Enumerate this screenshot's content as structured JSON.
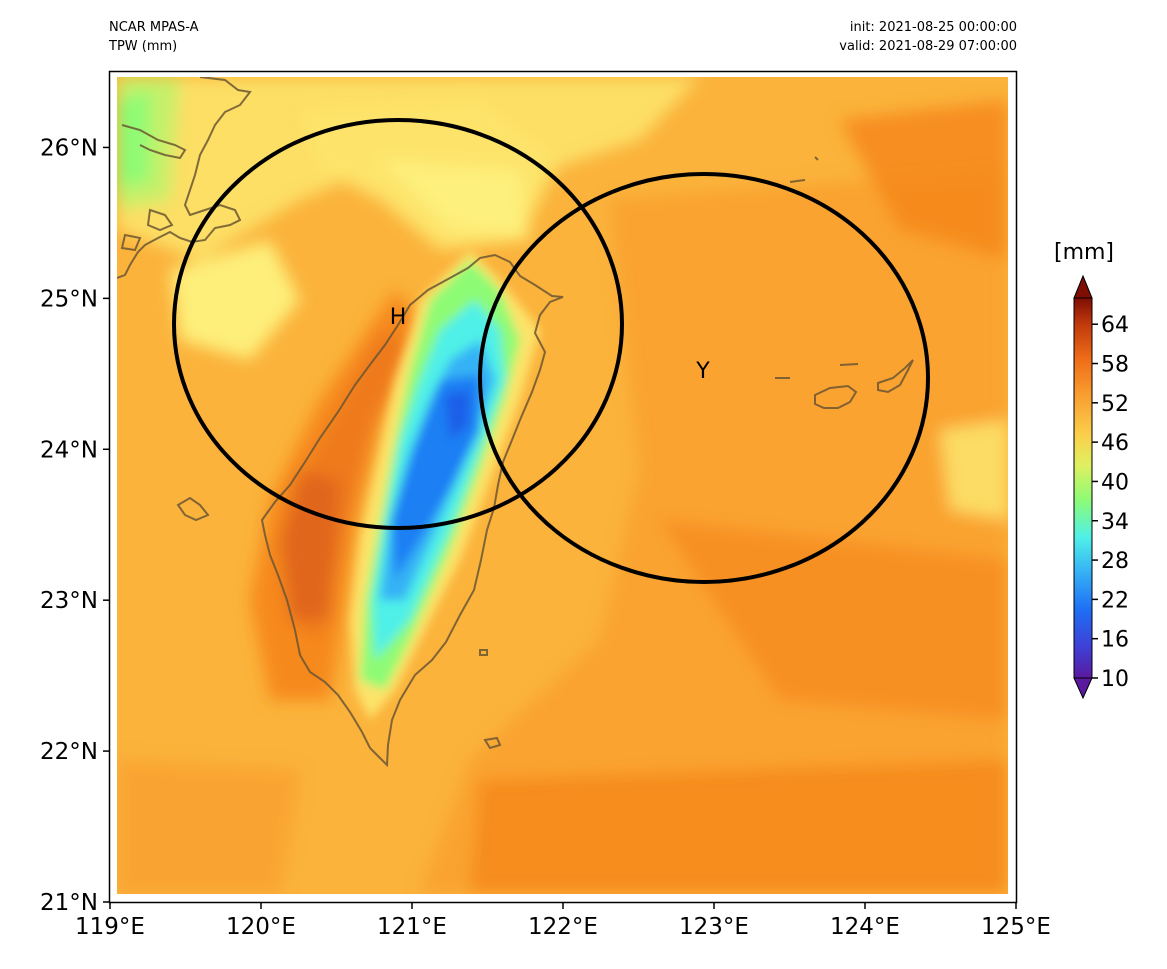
{
  "header": {
    "model": "NCAR MPAS-A",
    "variable": "TPW (mm)",
    "init": "init: 2021-08-25 00:00:00",
    "valid": "valid: 2021-08-29 07:00:00"
  },
  "axes": {
    "lon_ticks": [
      "119°E",
      "120°E",
      "121°E",
      "122°E",
      "123°E",
      "124°E",
      "125°E"
    ],
    "lat_ticks": [
      "21°N",
      "22°N",
      "23°N",
      "24°N",
      "25°N",
      "26°N"
    ],
    "lon_range": [
      119,
      125
    ],
    "lat_range": [
      21,
      26.5
    ]
  },
  "colorbar": {
    "title": "[mm]",
    "tick_labels": [
      "10",
      "16",
      "22",
      "28",
      "34",
      "40",
      "46",
      "52",
      "58",
      "64"
    ],
    "range": [
      10,
      68
    ]
  },
  "markers": [
    {
      "label": "H",
      "lon": 120.95,
      "lat": 24.82
    },
    {
      "label": "Y",
      "lon": 122.98,
      "lat": 24.48
    }
  ],
  "colors": {
    "background_field": "#fbb33c",
    "warm_band": "#f6891c",
    "moist_core": "#e0661a",
    "dry_yellow": "#fde36a",
    "dry_green": "#8efb74",
    "dry_cyan": "#4ff0e8",
    "dry_blue": "#1a7ff4",
    "coastline": "#6b5632"
  }
}
